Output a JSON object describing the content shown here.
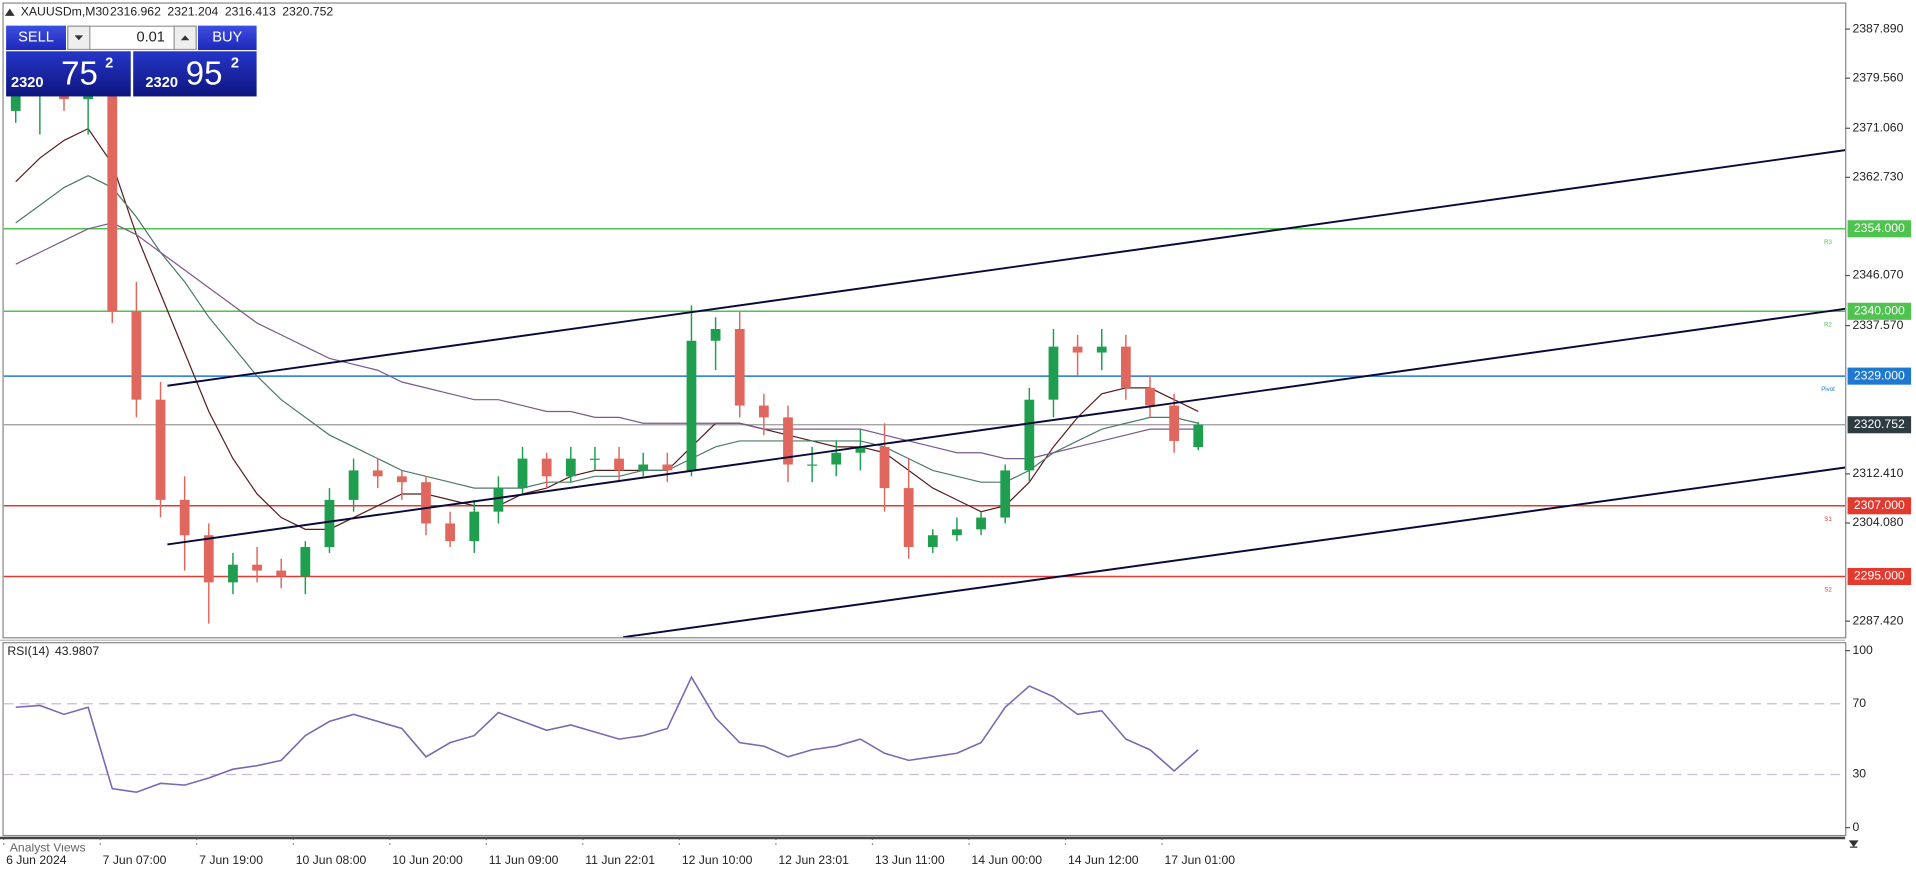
{
  "symbol": "XAUUSDm,M30",
  "trade_panel": {
    "sell": "SELL",
    "lot": "0.01",
    "buy": "BUY",
    "bid_big": "2320",
    "bid_pips": "75",
    "bid_frac": "2",
    "ask_big": "2320",
    "ask_pips": "95",
    "ask_frac": "2"
  },
  "footer": "Analyst Views",
  "chart_data": [
    {
      "type": "candlestick",
      "categories": [
        "6 Jun 2024",
        null,
        null,
        null,
        "7 Jun 07:00",
        null,
        null,
        null,
        "7 Jun 19:00",
        null,
        null,
        null,
        "10 Jun 08:00",
        null,
        null,
        null,
        "10 Jun 20:00",
        null,
        null,
        null,
        "11 Jun 09:00",
        null,
        null,
        null,
        "11 Jun 22:01",
        null,
        null,
        null,
        "12 Jun 10:00",
        null,
        null,
        null,
        "12 Jun 23:01",
        null,
        null,
        null,
        "13 Jun 11:00",
        null,
        null,
        null,
        "14 Jun 00:00",
        null,
        null,
        null,
        "14 Jun 12:00",
        null,
        null,
        null,
        "17 Jun 01:00",
        null
      ],
      "open": [
        2374,
        2377,
        2379,
        2376,
        2378,
        2340,
        2325,
        2308,
        2302,
        2294,
        2297,
        2296,
        2295,
        2300,
        2308,
        2313,
        2312,
        2311,
        2304,
        2301,
        2306,
        2310,
        2315,
        2312,
        2315,
        2315,
        2313,
        2314,
        2313,
        2335,
        2337,
        2324,
        2322,
        2314,
        2314,
        2316,
        2317,
        2310,
        2300,
        2302,
        2303,
        2305,
        2313,
        2325,
        2334,
        2333,
        2334,
        2327,
        2324,
        2316.962
      ],
      "high": [
        2379,
        2381,
        2381,
        2380,
        2379,
        2345,
        2328,
        2312,
        2304,
        2299,
        2300,
        2298,
        2301,
        2310,
        2315,
        2315,
        2313,
        2312,
        2306,
        2308,
        2312,
        2317,
        2316,
        2317,
        2317,
        2317,
        2316,
        2316,
        2341,
        2339,
        2340,
        2326,
        2324,
        2317,
        2318,
        2320,
        2321,
        2315,
        2303,
        2305,
        2306,
        2314,
        2327,
        2337,
        2336,
        2337,
        2336,
        2329,
        2326,
        2321.204
      ],
      "low": [
        2372,
        2370,
        2374,
        2370,
        2338,
        2322,
        2305,
        2296,
        2287,
        2292,
        2294,
        2293,
        2292,
        2299,
        2306,
        2310,
        2308,
        2302,
        2300,
        2299,
        2304,
        2309,
        2310,
        2311,
        2313,
        2311,
        2312,
        2311,
        2312,
        2330,
        2322,
        2319,
        2311,
        2311,
        2312,
        2313,
        2306,
        2298,
        2299,
        2301,
        2302,
        2304,
        2311,
        2322,
        2329,
        2330,
        2325,
        2322,
        2316,
        2316.413
      ],
      "close": [
        2377,
        2379,
        2376,
        2378,
        2340,
        2325,
        2308,
        2302,
        2294,
        2297,
        2296,
        2295,
        2300,
        2308,
        2313,
        2312,
        2311,
        2304,
        2301,
        2306,
        2310,
        2315,
        2312,
        2315,
        2315,
        2313,
        2314,
        2313,
        2335,
        2337,
        2324,
        2322,
        2314,
        2314,
        2316,
        2317,
        2310,
        2300,
        2302,
        2303,
        2305,
        2313,
        2325,
        2334,
        2333,
        2334,
        2327,
        2324,
        2318,
        2320.752
      ],
      "up_color": "#1f9e50",
      "down_color": "#e0675d",
      "series": [
        {
          "color": "#5a1e1e",
          "values": [
            2362,
            2366,
            2369,
            2371,
            2365,
            2353,
            2343,
            2333,
            2323,
            2315,
            2309,
            2305,
            2303,
            2303,
            2305,
            2307,
            2309,
            2309,
            2308,
            2307,
            2307,
            2309,
            2310,
            2312,
            2313,
            2313,
            2313,
            2313,
            2317,
            2321,
            2321,
            2320,
            2319,
            2318,
            2317,
            2317,
            2316,
            2313,
            2310,
            2308,
            2306,
            2307,
            2311,
            2317,
            2322,
            2326,
            2327,
            2327,
            2325,
            2323
          ]
        },
        {
          "color": "#4d7a66",
          "values": [
            2355,
            2358,
            2361,
            2363,
            2361,
            2356,
            2350,
            2345,
            2339,
            2334,
            2329,
            2325,
            2322,
            2319,
            2317,
            2315,
            2313,
            2312,
            2311,
            2310,
            2310,
            2310,
            2311,
            2311,
            2312,
            2312,
            2313,
            2313,
            2315,
            2317,
            2318,
            2318,
            2318,
            2318,
            2318,
            2318,
            2317,
            2315,
            2313,
            2312,
            2311,
            2311,
            2313,
            2316,
            2318,
            2320,
            2321,
            2322,
            2322,
            2321
          ]
        },
        {
          "color": "#7a5a8c",
          "values": [
            2348,
            2350,
            2352,
            2354,
            2355,
            2353,
            2350,
            2347,
            2344,
            2341,
            2338,
            2336,
            2334,
            2332,
            2331,
            2330,
            2328,
            2327,
            2326,
            2325,
            2325,
            2324,
            2323,
            2323,
            2322,
            2322,
            2321,
            2321,
            2321,
            2321,
            2321,
            2320,
            2320,
            2320,
            2320,
            2320,
            2319,
            2318,
            2317,
            2316,
            2316,
            2315,
            2315,
            2316,
            2317,
            2318,
            2319,
            2320,
            2320,
            2320
          ]
        }
      ],
      "levels": [
        {
          "name": "R3",
          "value": 2354,
          "label": "2354.000",
          "color": "#4fc24f"
        },
        {
          "name": "R2",
          "value": 2340,
          "label": "2340.000",
          "color": "#4fc24f"
        },
        {
          "name": "Pivot",
          "value": 2329,
          "label": "2329.000",
          "color": "#1e78d2"
        },
        {
          "name": "S1",
          "value": 2307,
          "label": "2307.000",
          "color": "#e23a2f"
        },
        {
          "name": "S2",
          "value": 2295,
          "label": "2295.000",
          "color": "#e23a2f"
        }
      ],
      "last_price_color": "#2e3b40",
      "ylim": [
        2284.7,
        2392.2
      ],
      "yticks": [
        {
          "value": 2387.89,
          "label": "2387.890"
        },
        {
          "value": 2379.56,
          "label": "2379.560"
        },
        {
          "value": 2371.06,
          "label": "2371.060"
        },
        {
          "value": 2362.73,
          "label": "2362.730"
        },
        {
          "value": 2346.07,
          "label": "2346.070"
        },
        {
          "value": 2337.57,
          "label": "2337.570"
        },
        {
          "value": 2312.41,
          "label": "2312.410"
        },
        {
          "value": 2304.08,
          "label": "2304.080"
        },
        {
          "value": 2287.42,
          "label": "2287.420"
        }
      ]
    },
    {
      "type": "line",
      "title": "RSI(14)",
      "series": [
        {
          "color": "#7b68b0",
          "values": [
            68,
            69,
            64,
            68,
            22,
            20,
            25,
            24,
            28,
            33,
            35,
            38,
            52,
            60,
            64,
            60,
            56,
            40,
            48,
            52,
            65,
            60,
            55,
            58,
            54,
            50,
            52,
            56,
            85,
            62,
            48,
            46,
            40,
            44,
            46,
            50,
            42,
            38,
            40,
            42,
            48,
            68,
            80,
            74,
            64,
            66,
            50,
            44,
            32,
            43.9807
          ]
        }
      ],
      "levels": [
        30,
        70
      ],
      "ylim": [
        0,
        100
      ],
      "yticks": [
        0,
        100
      ]
    }
  ]
}
